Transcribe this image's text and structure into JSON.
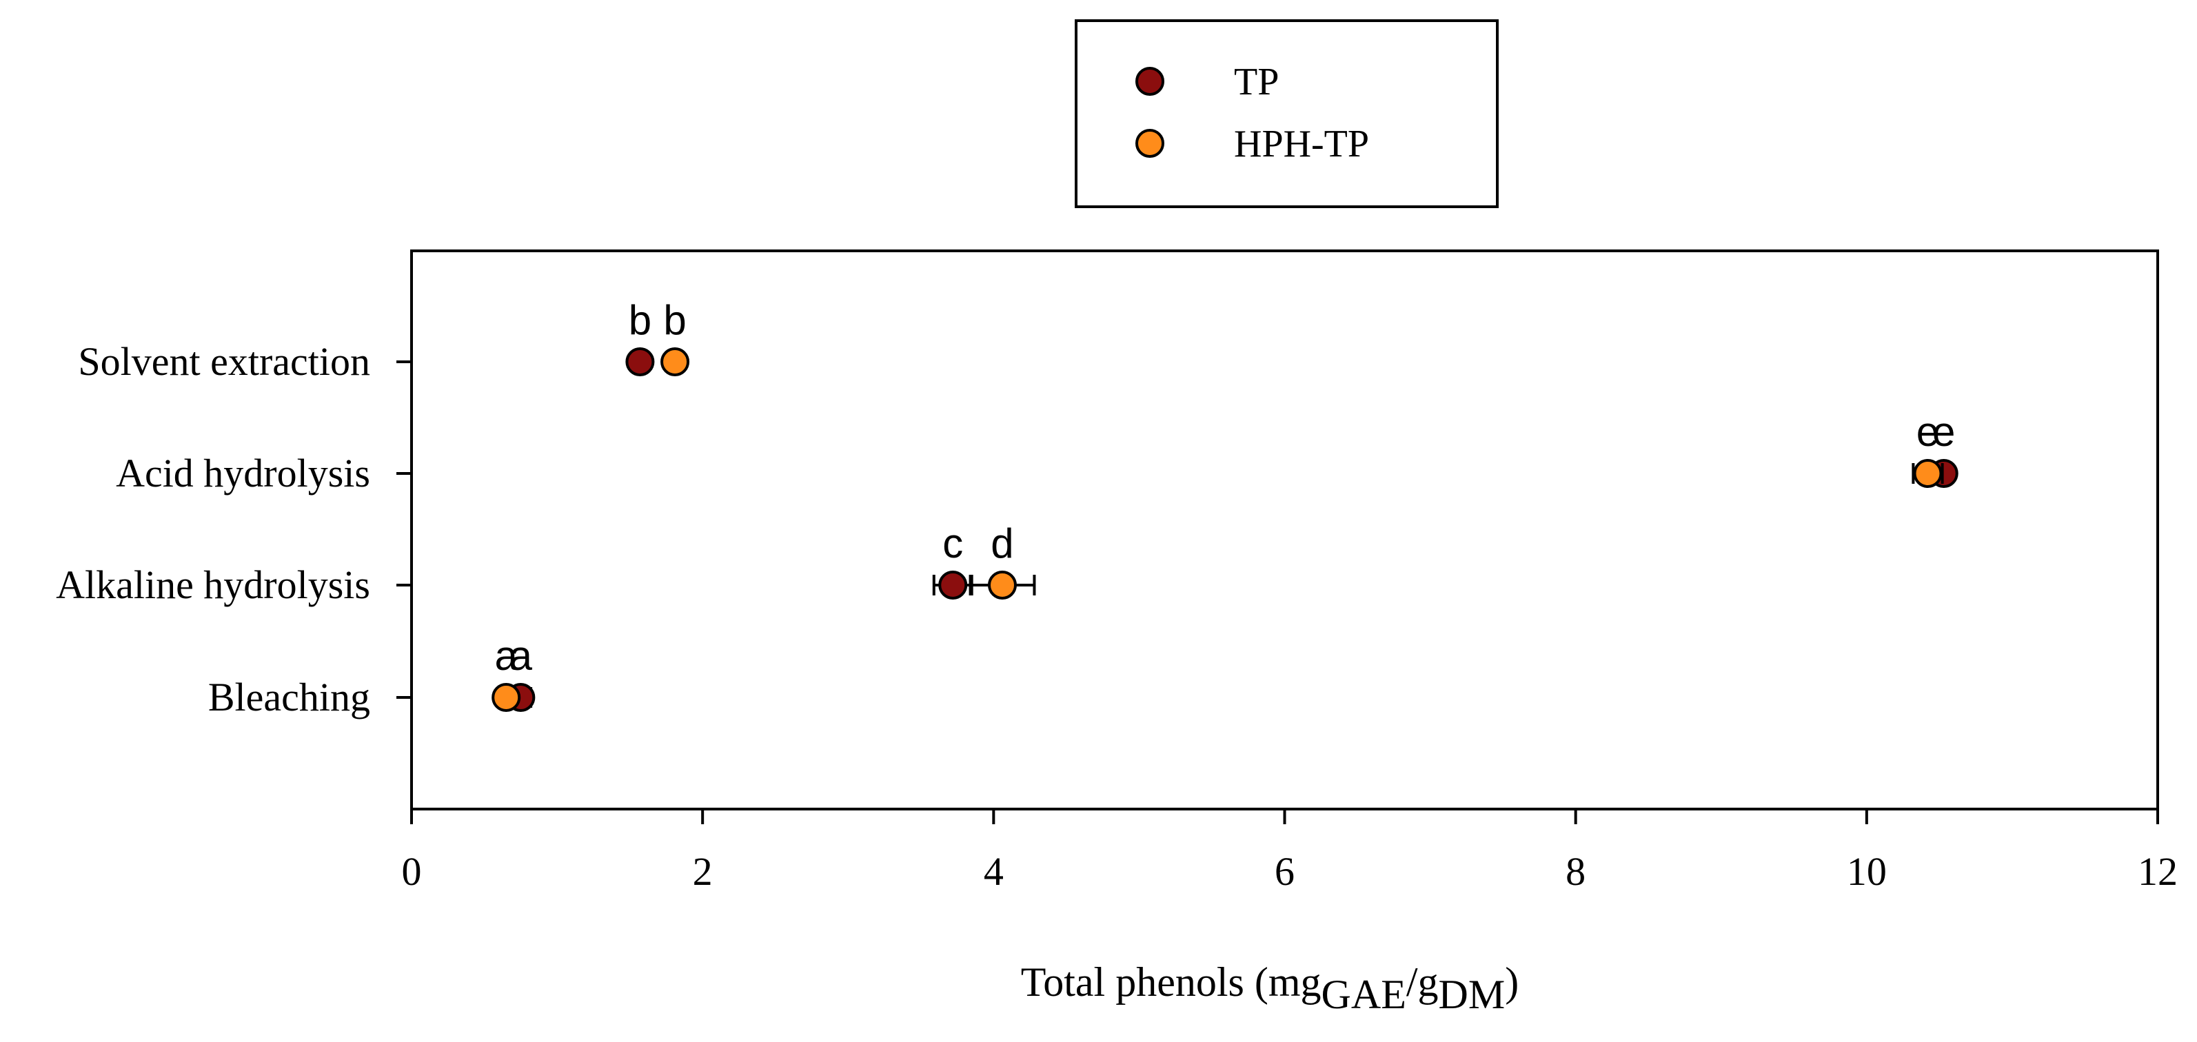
{
  "chart_data": {
    "type": "scatter",
    "orientation": "horizontal",
    "categories": [
      "Solvent extraction",
      "Acid hydrolysis",
      "Alkaline hydrolysis",
      "Bleaching"
    ],
    "series": [
      {
        "name": "TP",
        "color": "#8b0e0e",
        "values": [
          1.57,
          10.53,
          3.72,
          0.75
        ],
        "errors": [
          0.05,
          0.06,
          0.13,
          0.07
        ],
        "letters": [
          "b",
          "e",
          "c",
          "a"
        ]
      },
      {
        "name": "HPH-TP",
        "color": "#ff8c1a",
        "values": [
          1.81,
          10.42,
          4.06,
          0.65
        ],
        "errors": [
          0.04,
          0.1,
          0.22,
          0.06
        ],
        "letters": [
          "b",
          "e",
          "d",
          "a"
        ]
      }
    ],
    "xlabel": {
      "main": "Total phenols (mg",
      "sub1": "GAE",
      "mid": "/g",
      "sub2": "DM",
      "end": ")"
    },
    "xlim": [
      0,
      12
    ],
    "xticks": [
      "0",
      "2",
      "4",
      "6",
      "8",
      "10",
      "12"
    ],
    "grid": false,
    "legend_position": "top-center"
  }
}
